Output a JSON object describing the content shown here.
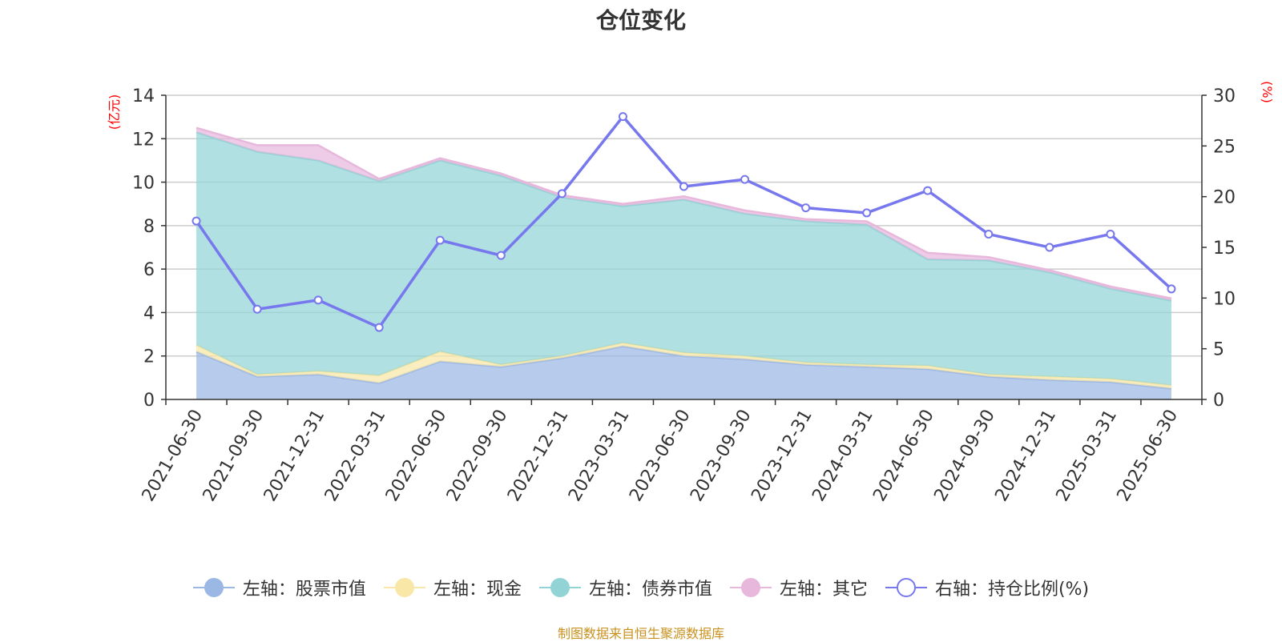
{
  "title": "仓位变化",
  "footer": "制图数据来自恒生聚源数据库",
  "left_unit": "(亿元)",
  "right_unit": "(%)",
  "legend": [
    {
      "label": "左轴：股票市值",
      "color": "#9bb7e4",
      "style": "fill"
    },
    {
      "label": "左轴：现金",
      "color": "#f8e7a7",
      "style": "fill"
    },
    {
      "label": "左轴：债券市值",
      "color": "#92d4d6",
      "style": "fill"
    },
    {
      "label": "左轴：其它",
      "color": "#e8b7dc",
      "style": "fill"
    },
    {
      "label": "右轴：持仓比例(%)",
      "color": "#7777ee",
      "style": "hollow"
    }
  ],
  "chart_data": {
    "type": "area",
    "stacked": true,
    "categories": [
      "2021-06-30",
      "2021-09-30",
      "2021-12-31",
      "2022-03-31",
      "2022-06-30",
      "2022-09-30",
      "2022-12-31",
      "2023-03-31",
      "2023-06-30",
      "2023-09-30",
      "2023-12-31",
      "2024-03-31",
      "2024-06-30",
      "2024-09-30",
      "2024-12-31",
      "2025-03-31",
      "2025-06-30"
    ],
    "left_axis": {
      "min": 0,
      "max": 14,
      "ticks": [
        0,
        2,
        4,
        6,
        8,
        10,
        12,
        14
      ],
      "unit": "(亿元)"
    },
    "right_axis": {
      "min": 0,
      "max": 30,
      "ticks": [
        0,
        5,
        10,
        15,
        20,
        25,
        30
      ],
      "unit": "(%)"
    },
    "series": [
      {
        "name": "左轴：股票市值",
        "axis": "left",
        "color": "#9bb7e4",
        "values": [
          2.2,
          1.05,
          1.15,
          0.75,
          1.75,
          1.5,
          1.9,
          2.45,
          2.0,
          1.85,
          1.6,
          1.5,
          1.4,
          1.05,
          0.9,
          0.8,
          0.5
        ]
      },
      {
        "name": "左轴：现金",
        "axis": "left",
        "color": "#f8e7a7",
        "values": [
          0.3,
          0.1,
          0.15,
          0.35,
          0.45,
          0.1,
          0.1,
          0.15,
          0.15,
          0.15,
          0.1,
          0.1,
          0.15,
          0.1,
          0.15,
          0.15,
          0.15
        ]
      },
      {
        "name": "左轴：债券市值",
        "axis": "left",
        "color": "#92d4d6",
        "values": [
          9.8,
          10.25,
          9.7,
          8.95,
          8.8,
          8.7,
          7.3,
          6.3,
          7.05,
          6.55,
          6.5,
          6.45,
          4.9,
          5.25,
          4.8,
          4.15,
          3.9
        ]
      },
      {
        "name": "左轴：其它",
        "axis": "left",
        "color": "#e8b7dc",
        "values": [
          0.2,
          0.3,
          0.7,
          0.1,
          0.1,
          0.1,
          0.1,
          0.1,
          0.15,
          0.15,
          0.1,
          0.15,
          0.3,
          0.15,
          0.1,
          0.1,
          0.1
        ]
      },
      {
        "name": "右轴：持仓比例(%)",
        "axis": "right",
        "type": "line",
        "color": "#7777ee",
        "values": [
          17.6,
          8.9,
          9.8,
          7.1,
          15.7,
          14.2,
          20.3,
          27.9,
          21.0,
          21.7,
          18.9,
          18.4,
          20.6,
          16.3,
          15.0,
          16.3,
          10.9
        ]
      }
    ]
  }
}
